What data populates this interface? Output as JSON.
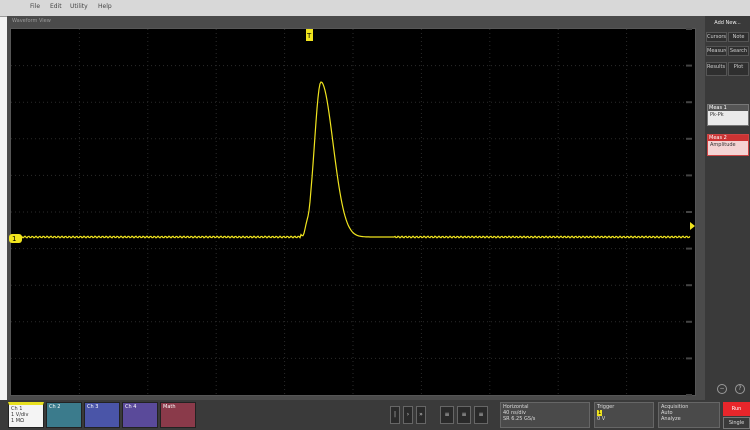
{
  "menu": {
    "items": [
      "File",
      "Edit",
      "Utility",
      "Help"
    ]
  },
  "waveform_view": {
    "caption": "Waveform View"
  },
  "trigger_position_marker": "T",
  "channel_level_marker": "1",
  "right_panel": {
    "title": "Add New...",
    "buttons": [
      "Cursors",
      "Note",
      "Measure",
      "Search",
      "Results Table",
      "Plot"
    ],
    "measurement_1": {
      "title": "Meas 1",
      "text": "Pk-Pk"
    },
    "measurement_2": {
      "title": "Meas 2",
      "text": "Amplitude"
    }
  },
  "channel_1": {
    "label": "Ch 1",
    "scale": "1 V/div",
    "impedance": "1 MΩ"
  },
  "channel_tabs": [
    "Ch 2",
    "Ch 3",
    "Ch 4",
    "Math"
  ],
  "horizontal": {
    "title": "Horizontal",
    "line1": "40 ns/div",
    "line2": "SR 6.25 GS/s"
  },
  "trigger": {
    "title": "Trigger",
    "line1": "1",
    "line2": "0 V"
  },
  "acquisition": {
    "title": "Acquisition",
    "line1": "Auto",
    "line2": "Analyze"
  },
  "run_button": "Run",
  "single_button": "Single",
  "colors": {
    "ch1": "#f0e41e",
    "grid": "#2b2b2b",
    "run": "#e8262b"
  }
}
